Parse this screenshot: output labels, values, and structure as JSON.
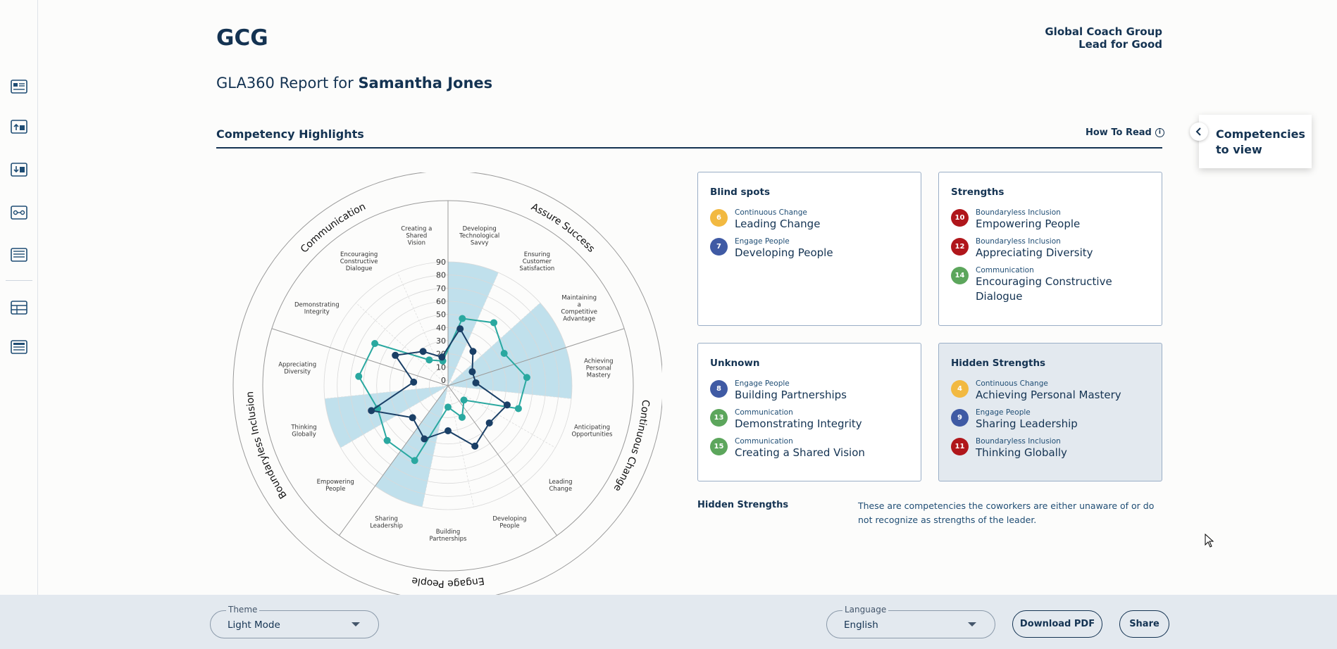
{
  "header": {
    "logo": "GCG",
    "brand_name": "Global Coach Group",
    "brand_tagline": "Lead for Good",
    "report_prefix": "GLA360 Report for",
    "report_person": "Samantha Jones"
  },
  "section": {
    "title": "Competency Highlights",
    "how_to_read": "How To Read"
  },
  "competencies_panel": {
    "line1": "Competencies",
    "line2": "to view"
  },
  "radar": {
    "groups": [
      "Communication",
      "Assure Success",
      "Continuous Change",
      "Engage People",
      "Boundaryless Inclusion"
    ],
    "axis_ticks": [
      "0",
      "10",
      "20",
      "30",
      "40",
      "50",
      "60",
      "70",
      "80",
      "90"
    ],
    "competencies": [
      "Developing Technological Savvy",
      "Ensuring Customer Satisfaction",
      "Maintaining a Competitive Advantage",
      "Achieving Personal Mastery",
      "Anticipating Opportunities",
      "Leading Change",
      "Developing People",
      "Building Partnerships",
      "Sharing Leadership",
      "Empowering People",
      "Thinking Globally",
      "Appreciating Diversity",
      "Demonstrating Integrity",
      "Encouraging Constructive Dialogue",
      "Creating a Shared Vision"
    ],
    "highlighted_sectors": [
      "Developing Technological Savvy",
      "Maintaining a Competitive Advantage",
      "Achieving Personal Mastery",
      "Sharing Leadership",
      "Thinking Globally"
    ],
    "series": [
      {
        "color": "#2aa8a0",
        "values": [
          48,
          55,
          45,
          56,
          52,
          12,
          22,
          12,
          58,
          58,
          52,
          64,
          60,
          20,
          15
        ]
      },
      {
        "color": "#1a3f66",
        "values": [
          40,
          28,
          17,
          17,
          43,
          38,
          46,
          30,
          40,
          32,
          57,
          22,
          42,
          28,
          18
        ]
      }
    ]
  },
  "cards": {
    "blind_spots": {
      "title": "Blind spots",
      "items": [
        {
          "num": "6",
          "color": "#f2b941",
          "category": "Continuous Change",
          "name": "Leading Change"
        },
        {
          "num": "7",
          "color": "#3f5aa4",
          "category": "Engage People",
          "name": "Developing People"
        }
      ]
    },
    "strengths": {
      "title": "Strengths",
      "items": [
        {
          "num": "10",
          "color": "#b0161b",
          "category": "Boundaryless Inclusion",
          "name": "Empowering People"
        },
        {
          "num": "12",
          "color": "#b0161b",
          "category": "Boundaryless Inclusion",
          "name": "Appreciating Diversity"
        },
        {
          "num": "14",
          "color": "#5ca65c",
          "category": "Communication",
          "name": "Encouraging Constructive Dialogue"
        }
      ]
    },
    "unknown": {
      "title": "Unknown",
      "items": [
        {
          "num": "8",
          "color": "#3f5aa4",
          "category": "Engage People",
          "name": "Building Partnerships"
        },
        {
          "num": "13",
          "color": "#5ca65c",
          "category": "Communication",
          "name": "Demonstrating Integrity"
        },
        {
          "num": "15",
          "color": "#5ca65c",
          "category": "Communication",
          "name": "Creating a Shared Vision"
        }
      ]
    },
    "hidden_strengths": {
      "title": "Hidden Strengths",
      "items": [
        {
          "num": "4",
          "color": "#f2b941",
          "category": "Continuous Change",
          "name": "Achieving Personal Mastery"
        },
        {
          "num": "9",
          "color": "#3f5aa4",
          "category": "Engage People",
          "name": "Sharing Leadership"
        },
        {
          "num": "11",
          "color": "#b0161b",
          "category": "Boundaryless Inclusion",
          "name": "Thinking Globally"
        }
      ]
    }
  },
  "legend": {
    "title": "Hidden Strengths",
    "description": "These are competencies the coworkers are either unaware of or do not recognize as strengths of the leader."
  },
  "footer": {
    "theme_label": "Theme",
    "theme_value": "Light Mode",
    "language_label": "Language",
    "language_value": "English",
    "download_label": "Download PDF",
    "share_label": "Share"
  },
  "sidebar": {
    "icons": [
      "dashboard-icon",
      "upload-report-icon",
      "download-report-icon",
      "comparison-icon",
      "document-icon",
      "table-icon",
      "list-icon"
    ]
  }
}
